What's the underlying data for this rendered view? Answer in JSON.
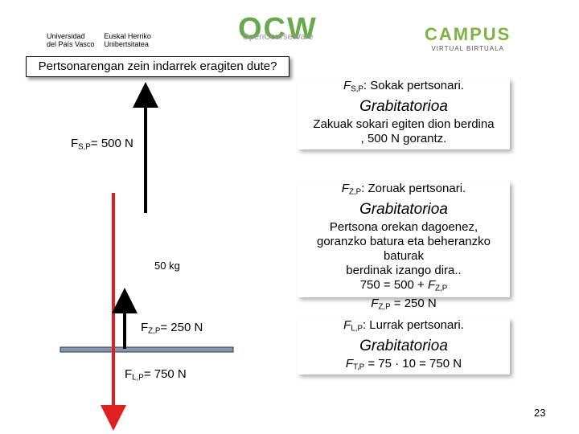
{
  "logos": {
    "upv": {
      "es": [
        "Universidad",
        "del País Vasco"
      ],
      "eu": [
        "Euskal Herriko",
        "Unibertsitatea"
      ]
    },
    "ocw": {
      "name": "OCW",
      "tagline": "OpenCourseWare"
    },
    "campus": {
      "name": "CAMPUS",
      "tagline": "VIRTUAL BIRTUALA"
    }
  },
  "title": "Pertsonarengan zein indarrek eragiten dute?",
  "diagram": {
    "mass": "50 kg",
    "labels": [
      {
        "symbol": "F",
        "sub": "S,P",
        "text": "= 500 N"
      },
      {
        "symbol": "F",
        "sub": "Z,P",
        "text": "= 250 N"
      },
      {
        "symbol": "F",
        "sub": "L,P",
        "text": "= 750 N"
      }
    ]
  },
  "boxes": [
    {
      "heading": {
        "symbol": "F",
        "sub": "S,P",
        "text": ": Sokak pertsonari."
      },
      "kind": "Grabitatorioa",
      "body": [
        "Zakuak sokari egiten dion berdina",
        ", 500 N gorantz."
      ]
    },
    {
      "heading": {
        "symbol": "F",
        "sub": "Z,P",
        "text": ": Zoruak pertsonari."
      },
      "kind": "Grabitatorioa",
      "body": [
        "Pertsona orekan dagoenez,",
        "goranzko batura eta beheranzko baturak",
        "berdinak izango dira.."
      ],
      "equations": [
        {
          "before": "750 = 500 + ",
          "symbol": "F",
          "sub": "Z,P",
          "after": ""
        },
        {
          "before": "",
          "symbol": "F",
          "sub": "Z,P",
          "after": " = 250 N"
        }
      ]
    },
    {
      "heading": {
        "symbol": "F",
        "sub": "L,P",
        "text": ": Lurrak pertsonari."
      },
      "kind": "Grabitatorioa",
      "equations": [
        {
          "before": "",
          "symbol": "F",
          "sub": "T,P",
          "after": " = 75 · 10 = 750 N"
        }
      ]
    }
  ],
  "page_number": "23"
}
